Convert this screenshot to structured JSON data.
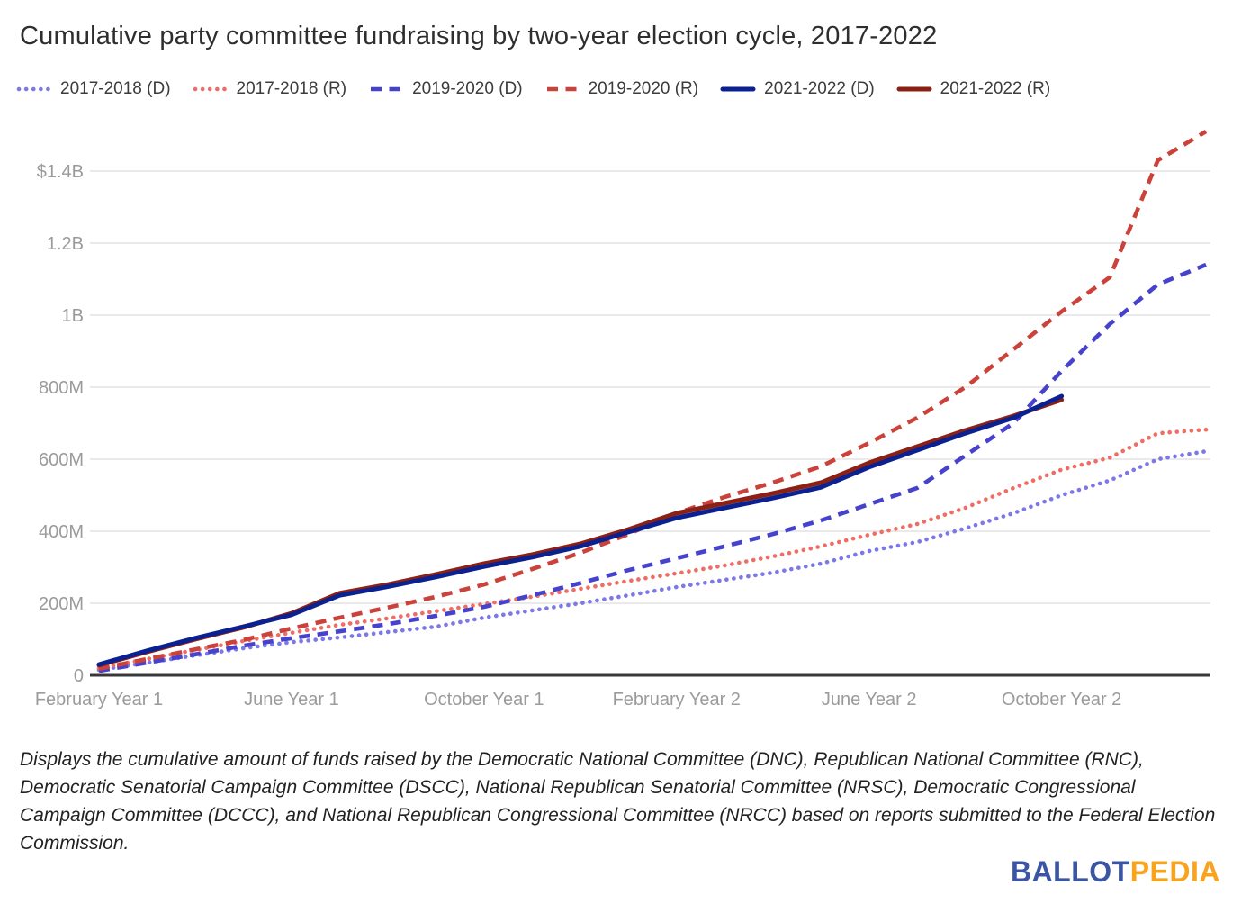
{
  "title": "Cumulative party committee fundraising by two-year election cycle, 2017-2022",
  "footnote": "Displays the cumulative amount of funds raised by the Democratic National Committee (DNC), Republican National Committee (RNC), Democratic Senatorial Campaign Committee (DSCC), National Republican Senatorial Committee (NRSC), Democratic Congressional Campaign Committee (DCCC), and National Republican Congressional Committee (NRCC) based on reports submitted to the Federal Election Commission.",
  "logo": {
    "part1": "BALLOT",
    "part2": "PEDIA",
    "part1_color": "#3b55a5",
    "part2_color": "#f7a31c"
  },
  "colors": {
    "grid": "#e4e4e4",
    "axis": "#38383a",
    "tick_text": "#9b9b9b",
    "title_text": "#2e2e2e"
  },
  "chart_data": {
    "type": "line",
    "title": "Cumulative party committee fundraising by two-year election cycle, 2017-2022",
    "x_unit": "months since February of Year 1 of the cycle",
    "x_tick_labels": [
      "February Year 1",
      "June Year 1",
      "October Year 1",
      "February Year 2",
      "June Year 2",
      "October Year 2"
    ],
    "x_tick_month_index": [
      0,
      4,
      8,
      12,
      16,
      20
    ],
    "y_axis": {
      "tick_labels": [
        "$1.4B",
        "1.2B",
        "1B",
        "800M",
        "600M",
        "400M",
        "200M",
        "0"
      ],
      "tick_values_musd": [
        1400,
        1200,
        1000,
        800,
        600,
        400,
        200,
        0
      ],
      "unit": "millions of USD",
      "range_musd": [
        0,
        1510
      ]
    },
    "grid": "horizontal",
    "legend_position": "top",
    "series": [
      {
        "name": "2017-2018 (D)",
        "style": "dotted",
        "color": "#7b79e8",
        "values_musd": [
          15,
          35,
          55,
          75,
          92,
          105,
          120,
          135,
          160,
          180,
          200,
          222,
          245,
          265,
          285,
          310,
          345,
          370,
          408,
          450,
          500,
          541,
          600,
          622
        ]
      },
      {
        "name": "2017-2018 (R)",
        "style": "dotted",
        "color": "#ee6e66",
        "values_musd": [
          20,
          45,
          70,
          95,
          118,
          140,
          158,
          178,
          198,
          218,
          240,
          262,
          283,
          305,
          330,
          358,
          390,
          420,
          465,
          520,
          571,
          604,
          672,
          682
        ]
      },
      {
        "name": "2019-2020 (D)",
        "style": "dashed",
        "color": "#4742cb",
        "values_musd": [
          12,
          35,
          58,
          82,
          103,
          122,
          142,
          165,
          190,
          222,
          256,
          292,
          325,
          358,
          392,
          430,
          475,
          520,
          610,
          700,
          845,
          975,
          1085,
          1140
        ]
      },
      {
        "name": "2019-2020 (R)",
        "style": "dashed",
        "color": "#cb423b",
        "values_musd": [
          18,
          45,
          72,
          98,
          130,
          160,
          188,
          218,
          252,
          295,
          340,
          392,
          450,
          495,
          535,
          580,
          645,
          715,
          800,
          905,
          1010,
          1105,
          1430,
          1510
        ]
      },
      {
        "name": "2021-2022 (R)",
        "style": "solid",
        "color": "#8b2015",
        "values_musd": [
          28,
          65,
          100,
          133,
          172,
          228,
          252,
          280,
          310,
          335,
          365,
          405,
          450,
          478,
          505,
          535,
          590,
          635,
          680,
          720,
          765
        ]
      },
      {
        "name": "2021-2022 (D)",
        "style": "solid",
        "color": "#0b2190",
        "values_musd": [
          30,
          68,
          103,
          135,
          168,
          222,
          246,
          273,
          302,
          328,
          358,
          398,
          437,
          465,
          492,
          522,
          578,
          625,
          672,
          715,
          775
        ]
      }
    ],
    "legend_order": [
      "2017-2018 (D)",
      "2017-2018 (R)",
      "2019-2020 (D)",
      "2019-2020 (R)",
      "2021-2022 (D)",
      "2021-2022 (R)"
    ]
  }
}
